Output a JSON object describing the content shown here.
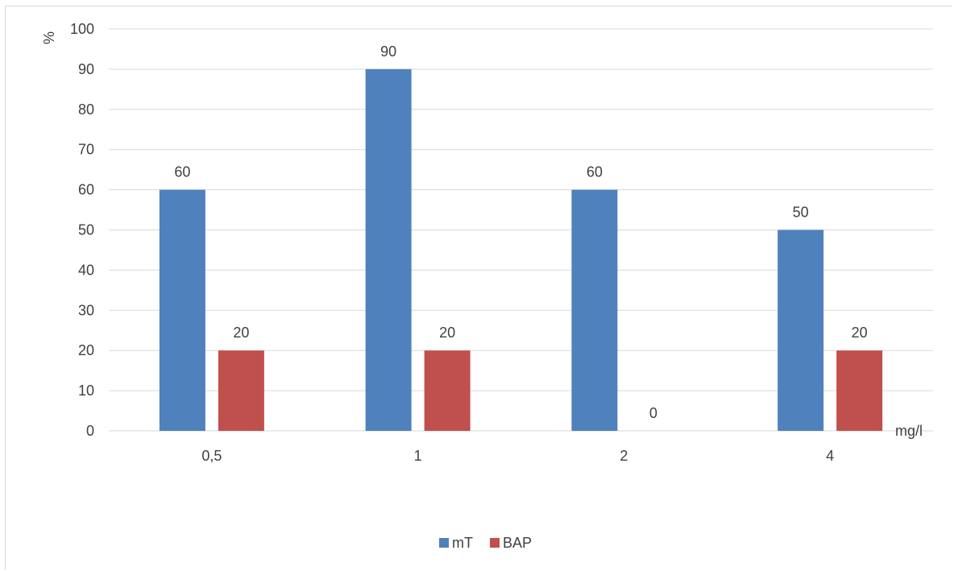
{
  "chart_data": {
    "type": "bar",
    "categories": [
      "0,5",
      "1",
      "2",
      "4"
    ],
    "series": [
      {
        "name": "mT",
        "values": [
          60,
          90,
          60,
          50
        ],
        "color": "#4f81bd"
      },
      {
        "name": "BAP",
        "values": [
          20,
          20,
          0,
          20
        ],
        "color": "#c0504d"
      }
    ],
    "ylabel": "%",
    "xlabel": "mg/l",
    "ylim": [
      0,
      100
    ],
    "yticks": [
      0,
      10,
      20,
      30,
      40,
      50,
      60,
      70,
      80,
      90,
      100
    ],
    "grid": true,
    "legend": "bottom",
    "data_labels": true
  }
}
